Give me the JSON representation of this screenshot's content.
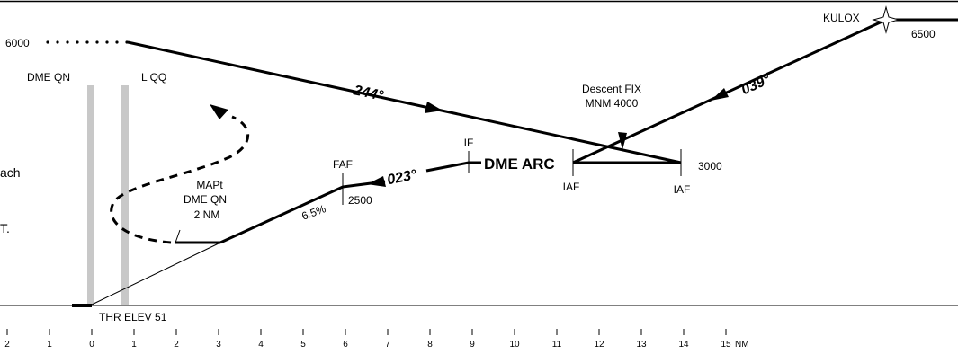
{
  "chart": {
    "fixes": {
      "kulox": "KULOX",
      "faf": "FAF",
      "if": "IF",
      "iaf_left": "IAF",
      "iaf_right": "IAF",
      "dme_arc": "DME ARC",
      "descent_fix_line1": "Descent FIX",
      "descent_fix_line2": "MNM 4000",
      "mapt_line1": "MAPt",
      "mapt_line2": "DME QN",
      "mapt_line3": "2 NM"
    },
    "navaids": {
      "dme": "DME QN",
      "locator": "L QQ"
    },
    "altitudes": {
      "missed_approach": "6000",
      "kulox": "6500",
      "arc": "3000",
      "faf": "2500"
    },
    "courses": {
      "outbound": "244°",
      "inbound_to_arc": "039°",
      "final": "023°"
    },
    "gradient": "6.5%",
    "threshold": "THR ELEV 51",
    "left_fragment": {
      "line1": "ach",
      "line2": "T."
    },
    "distance_scale": {
      "unit": "NM",
      "ticks": [
        "2",
        "1",
        "0",
        "1",
        "2",
        "3",
        "4",
        "5",
        "6",
        "7",
        "8",
        "9",
        "10",
        "11",
        "12",
        "13",
        "14",
        "15"
      ]
    }
  }
}
